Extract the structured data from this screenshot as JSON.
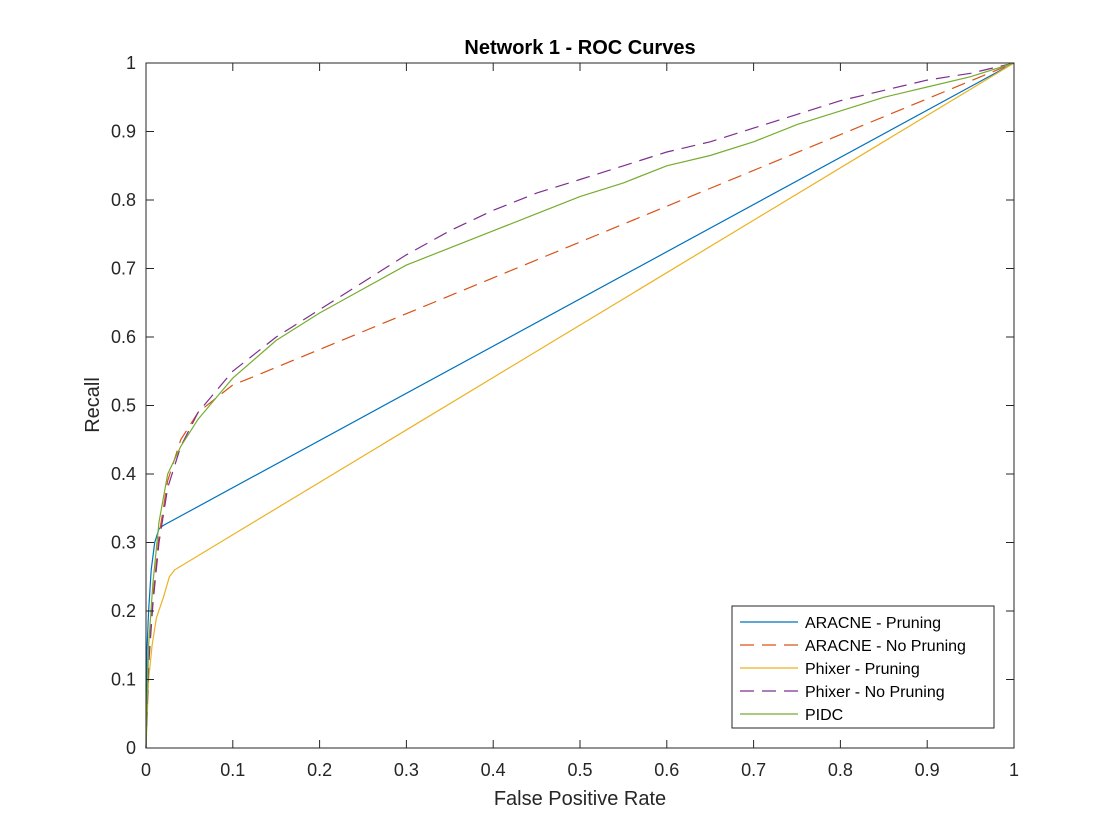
{
  "chart_data": {
    "type": "line",
    "title": "Network 1 - ROC Curves",
    "xlabel": "False Positive Rate",
    "ylabel": "Recall",
    "xlim": [
      0,
      1
    ],
    "ylim": [
      0,
      1
    ],
    "xticks": [
      "0",
      "0.1",
      "0.2",
      "0.3",
      "0.4",
      "0.5",
      "0.6",
      "0.7",
      "0.8",
      "0.9",
      "1"
    ],
    "yticks": [
      "0",
      "0.1",
      "0.2",
      "0.3",
      "0.4",
      "0.5",
      "0.6",
      "0.7",
      "0.8",
      "0.9",
      "1"
    ],
    "grid": false,
    "legend_position": "bottom-right",
    "series": [
      {
        "name": "ARACNE - Pruning",
        "color": "#0072BD",
        "dash": "solid",
        "x": [
          0,
          0.001,
          0.003,
          0.006,
          0.01,
          0.015,
          0.02,
          1.0
        ],
        "y": [
          0,
          0.14,
          0.2,
          0.26,
          0.3,
          0.32,
          0.325,
          1.0
        ]
      },
      {
        "name": "ARACNE - No Pruning",
        "color": "#D95319",
        "dash": "dashed",
        "x": [
          0,
          0.003,
          0.008,
          0.015,
          0.025,
          0.04,
          0.06,
          0.08,
          0.1,
          0.12,
          1.0
        ],
        "y": [
          0,
          0.13,
          0.22,
          0.31,
          0.39,
          0.45,
          0.49,
          0.51,
          0.53,
          0.54,
          1.0
        ]
      },
      {
        "name": "Phixer - Pruning",
        "color": "#EDB120",
        "dash": "solid",
        "x": [
          0,
          0.003,
          0.007,
          0.012,
          0.02,
          0.027,
          0.033,
          1.0
        ],
        "y": [
          0,
          0.1,
          0.15,
          0.19,
          0.22,
          0.25,
          0.26,
          1.0
        ]
      },
      {
        "name": "Phixer - No Pruning",
        "color": "#7E2F8E",
        "dash": "dashed",
        "x": [
          0,
          0.003,
          0.008,
          0.015,
          0.025,
          0.04,
          0.06,
          0.08,
          0.1,
          0.15,
          0.2,
          0.25,
          0.3,
          0.35,
          0.4,
          0.45,
          0.5,
          0.55,
          0.6,
          0.65,
          0.7,
          0.75,
          0.8,
          0.85,
          0.9,
          0.95,
          1.0
        ],
        "y": [
          0,
          0.12,
          0.21,
          0.3,
          0.38,
          0.44,
          0.49,
          0.52,
          0.55,
          0.6,
          0.64,
          0.68,
          0.72,
          0.755,
          0.785,
          0.81,
          0.83,
          0.85,
          0.87,
          0.885,
          0.905,
          0.925,
          0.945,
          0.96,
          0.975,
          0.985,
          1.0
        ]
      },
      {
        "name": "PIDC",
        "color": "#77AC30",
        "dash": "solid",
        "x": [
          0,
          0.003,
          0.008,
          0.015,
          0.025,
          0.04,
          0.06,
          0.08,
          0.1,
          0.15,
          0.2,
          0.25,
          0.3,
          0.35,
          0.4,
          0.45,
          0.5,
          0.55,
          0.6,
          0.65,
          0.7,
          0.75,
          0.8,
          0.85,
          0.9,
          0.95,
          1.0
        ],
        "y": [
          0,
          0.15,
          0.24,
          0.33,
          0.4,
          0.44,
          0.48,
          0.51,
          0.54,
          0.595,
          0.635,
          0.67,
          0.705,
          0.73,
          0.755,
          0.78,
          0.805,
          0.825,
          0.85,
          0.865,
          0.885,
          0.91,
          0.93,
          0.95,
          0.965,
          0.98,
          1.0
        ]
      }
    ]
  }
}
